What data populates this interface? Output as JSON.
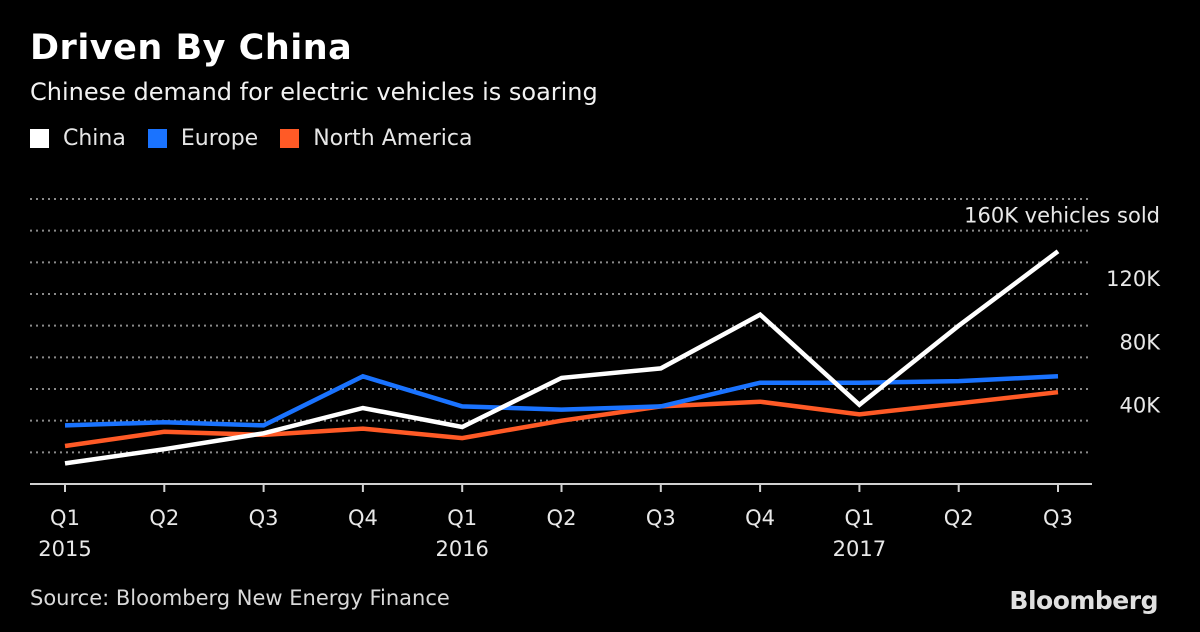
{
  "title": "Driven By China",
  "subtitle": "Chinese demand for electric vehicles is soaring",
  "source": "Source: Bloomberg New Energy Finance",
  "brand": "Bloomberg",
  "legend": [
    {
      "label": "China",
      "color": "#ffffff"
    },
    {
      "label": "Europe",
      "color": "#1a73ff"
    },
    {
      "label": "North America",
      "color": "#ff5a26"
    }
  ],
  "chart_data": {
    "type": "line",
    "categories": [
      "Q1",
      "Q2",
      "Q3",
      "Q4",
      "Q1",
      "Q2",
      "Q3",
      "Q4",
      "Q1",
      "Q2",
      "Q3"
    ],
    "year_labels": [
      "2015",
      "",
      "",
      "",
      "2016",
      "",
      "",
      "",
      "2017",
      "",
      ""
    ],
    "series": [
      {
        "name": "China",
        "color": "#ffffff",
        "values": [
          3,
          12,
          22,
          38,
          26,
          57,
          63,
          97,
          40,
          90,
          137
        ]
      },
      {
        "name": "Europe",
        "color": "#1a73ff",
        "values": [
          27,
          29,
          27,
          58,
          39,
          37,
          39,
          54,
          54,
          55,
          58
        ]
      },
      {
        "name": "North America",
        "color": "#ff5a26",
        "values": [
          14,
          23,
          21,
          25,
          19,
          30,
          39,
          42,
          34,
          41,
          48
        ]
      }
    ],
    "ylim": [
      -10,
      170
    ],
    "gridlines": [
      10,
      30,
      50,
      70,
      90,
      110,
      130,
      150,
      170
    ],
    "y_tick_labels": [
      {
        "value": 30,
        "label": "40K"
      },
      {
        "value": 70,
        "label": "80K"
      },
      {
        "value": 110,
        "label": "120K"
      },
      {
        "value": 150,
        "label": "160K vehicles sold"
      }
    ],
    "grid": true,
    "legend_position": "top-left"
  }
}
